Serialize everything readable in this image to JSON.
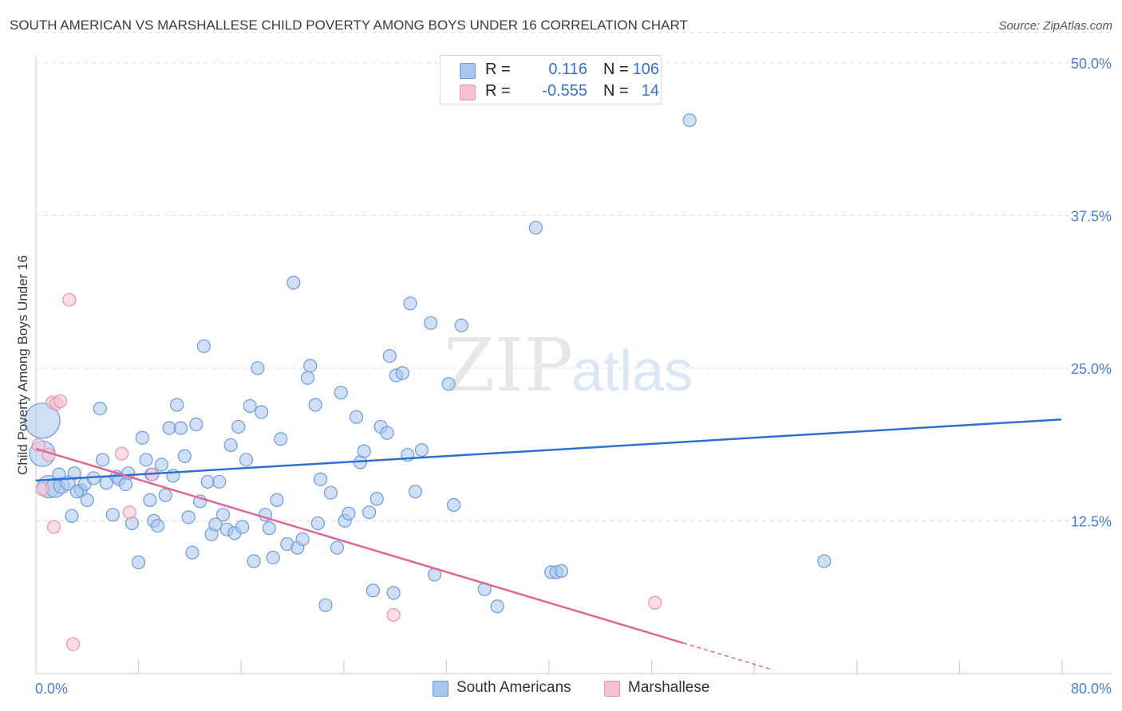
{
  "title": "SOUTH AMERICAN VS MARSHALLESE CHILD POVERTY AMONG BOYS UNDER 16 CORRELATION CHART",
  "source": "Source: ZipAtlas.com",
  "watermark": {
    "zip": "ZIP",
    "atlas": "atlas"
  },
  "legend": {
    "r_label": "R =",
    "n_label": "N =",
    "rows": [
      {
        "r": "0.116",
        "n": "106",
        "color": "#a8c6ee",
        "border": "#6f9ad8"
      },
      {
        "r": "-0.555",
        "n": "14",
        "color": "#f7c1d2",
        "border": "#e893ad"
      }
    ]
  },
  "chart_data": {
    "type": "scatter",
    "title": "SOUTH AMERICAN VS MARSHALLESE CHILD POVERTY AMONG BOYS UNDER 16 CORRELATION CHART",
    "xlabel": "",
    "ylabel": "Child Poverty Among Boys Under 16",
    "xlim": [
      0,
      80
    ],
    "ylim": [
      0,
      52.5
    ],
    "x_tick_labels": [
      "0.0%",
      "80.0%"
    ],
    "y_ticks": [
      12.5,
      25.0,
      37.5,
      50.0
    ],
    "y_tick_labels": [
      "12.5%",
      "25.0%",
      "37.5%",
      "50.0%"
    ],
    "grid": true,
    "legend_position": "top-center",
    "series": [
      {
        "name": "South Americans",
        "color": "#a8c6ee",
        "stroke": "#6f9ad8",
        "line_color": "#2f6fcf",
        "trend": {
          "x": [
            0,
            80
          ],
          "y": [
            15.8,
            20.8
          ]
        },
        "points": [
          [
            0.5,
            20.7,
            22
          ],
          [
            0.5,
            18.0,
            16
          ],
          [
            1.0,
            15.3,
            14
          ],
          [
            1.5,
            15.2,
            12
          ],
          [
            2.0,
            15.4,
            10
          ],
          [
            2.5,
            15.6,
            9
          ],
          [
            3.0,
            16.4,
            8
          ],
          [
            3.5,
            15.0,
            8
          ],
          [
            4.0,
            14.2,
            8
          ],
          [
            5.0,
            21.7,
            8
          ],
          [
            2.8,
            12.9,
            8
          ],
          [
            3.8,
            15.5,
            8
          ],
          [
            4.5,
            16.0,
            8
          ],
          [
            5.2,
            17.5,
            8
          ],
          [
            5.5,
            15.6,
            8
          ],
          [
            6.0,
            13.0,
            8
          ],
          [
            6.3,
            16.1,
            8
          ],
          [
            6.5,
            15.9,
            8
          ],
          [
            7.0,
            15.5,
            8
          ],
          [
            7.2,
            16.4,
            8
          ],
          [
            7.5,
            12.3,
            8
          ],
          [
            8.0,
            9.1,
            8
          ],
          [
            8.3,
            19.3,
            8
          ],
          [
            8.6,
            17.5,
            8
          ],
          [
            8.9,
            14.2,
            8
          ],
          [
            9.2,
            12.5,
            8
          ],
          [
            9.5,
            12.1,
            8
          ],
          [
            9.8,
            17.1,
            8
          ],
          [
            10.1,
            14.6,
            8
          ],
          [
            10.4,
            20.1,
            8
          ],
          [
            10.7,
            16.2,
            8
          ],
          [
            11.0,
            22.0,
            8
          ],
          [
            11.3,
            20.1,
            8
          ],
          [
            11.6,
            17.8,
            8
          ],
          [
            11.9,
            12.8,
            8
          ],
          [
            12.2,
            9.9,
            8
          ],
          [
            12.5,
            20.4,
            8
          ],
          [
            12.8,
            14.1,
            8
          ],
          [
            13.1,
            26.8,
            8
          ],
          [
            13.4,
            15.7,
            8
          ],
          [
            13.7,
            11.4,
            8
          ],
          [
            14.0,
            12.2,
            8
          ],
          [
            14.3,
            15.7,
            8
          ],
          [
            14.6,
            13.0,
            8
          ],
          [
            14.9,
            11.8,
            8
          ],
          [
            15.2,
            18.7,
            8
          ],
          [
            15.5,
            11.5,
            8
          ],
          [
            15.8,
            20.2,
            8
          ],
          [
            16.1,
            12.0,
            8
          ],
          [
            16.4,
            17.5,
            8
          ],
          [
            16.7,
            21.9,
            8
          ],
          [
            17.0,
            9.2,
            8
          ],
          [
            17.3,
            25.0,
            8
          ],
          [
            17.6,
            21.4,
            8
          ],
          [
            17.9,
            13.0,
            8
          ],
          [
            18.2,
            11.9,
            8
          ],
          [
            18.5,
            9.5,
            8
          ],
          [
            18.8,
            14.2,
            8
          ],
          [
            19.1,
            19.2,
            8
          ],
          [
            19.6,
            10.6,
            8
          ],
          [
            20.1,
            32.0,
            8
          ],
          [
            20.4,
            10.3,
            8
          ],
          [
            20.8,
            11.0,
            8
          ],
          [
            21.2,
            24.2,
            8
          ],
          [
            21.4,
            25.2,
            8
          ],
          [
            21.8,
            22.0,
            8
          ],
          [
            22.2,
            15.9,
            8
          ],
          [
            22.6,
            5.6,
            8
          ],
          [
            23.0,
            14.8,
            8
          ],
          [
            23.5,
            10.3,
            8
          ],
          [
            23.8,
            23.0,
            8
          ],
          [
            24.1,
            12.5,
            8
          ],
          [
            24.4,
            13.1,
            8
          ],
          [
            25.0,
            21.0,
            8
          ],
          [
            25.3,
            17.3,
            8
          ],
          [
            25.6,
            18.2,
            8
          ],
          [
            26.0,
            13.2,
            8
          ],
          [
            26.3,
            6.8,
            8
          ],
          [
            26.6,
            14.3,
            8
          ],
          [
            26.9,
            20.2,
            8
          ],
          [
            27.4,
            19.7,
            8
          ],
          [
            27.6,
            26.0,
            8
          ],
          [
            27.9,
            6.6,
            8
          ],
          [
            28.1,
            24.4,
            8
          ],
          [
            28.6,
            24.6,
            8
          ],
          [
            29.0,
            17.9,
            8
          ],
          [
            29.2,
            30.3,
            8
          ],
          [
            29.6,
            14.9,
            8
          ],
          [
            30.1,
            18.3,
            8
          ],
          [
            30.8,
            28.7,
            8
          ],
          [
            31.1,
            8.1,
            8
          ],
          [
            32.2,
            23.7,
            8
          ],
          [
            32.6,
            13.8,
            8
          ],
          [
            33.2,
            28.5,
            8
          ],
          [
            35.0,
            6.9,
            8
          ],
          [
            36.0,
            5.5,
            8
          ],
          [
            39.0,
            36.5,
            8
          ],
          [
            40.2,
            8.3,
            8
          ],
          [
            40.6,
            8.3,
            8
          ],
          [
            41.0,
            8.4,
            8
          ],
          [
            51.0,
            45.3,
            8
          ],
          [
            61.5,
            9.2,
            8
          ],
          [
            3.2,
            14.9,
            8
          ],
          [
            1.8,
            16.3,
            8
          ],
          [
            9.0,
            16.3,
            8
          ],
          [
            22.0,
            12.3,
            8
          ]
        ]
      },
      {
        "name": "Marshallese",
        "color": "#f7c1d2",
        "stroke": "#e893ad",
        "line_color": "#e06692",
        "trend": {
          "x": [
            0,
            50.5
          ],
          "y": [
            18.4,
            2.5
          ]
        },
        "trend_dashed": {
          "x": [
            50.5,
            57.5
          ],
          "y": [
            2.5,
            0.3
          ]
        },
        "points": [
          [
            0.2,
            18.7,
            8
          ],
          [
            0.5,
            15.1,
            8
          ],
          [
            1.0,
            17.9,
            8
          ],
          [
            1.3,
            22.2,
            8
          ],
          [
            1.6,
            22.1,
            8
          ],
          [
            1.4,
            12.0,
            8
          ],
          [
            1.9,
            22.3,
            8
          ],
          [
            2.6,
            30.6,
            8
          ],
          [
            2.9,
            2.4,
            8
          ],
          [
            6.7,
            18.0,
            8
          ],
          [
            7.3,
            13.2,
            8
          ],
          [
            9.1,
            16.3,
            8
          ],
          [
            27.9,
            4.8,
            8
          ],
          [
            48.3,
            5.8,
            8
          ]
        ]
      }
    ]
  }
}
